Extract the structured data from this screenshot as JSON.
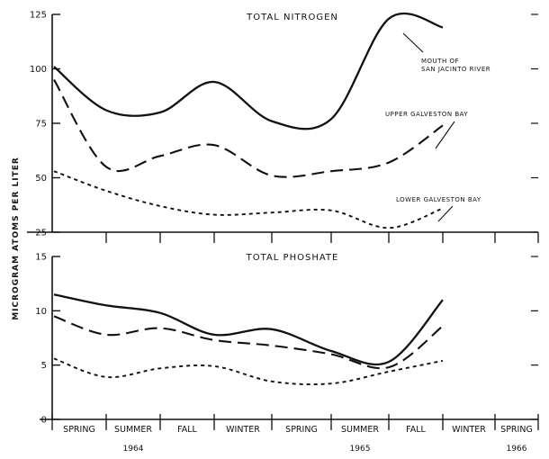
{
  "chart_data": {
    "ylabel": "MICROGRAM ATOMS PER LITER",
    "seasons": [
      "SPRING",
      "SUMMER",
      "FALL",
      "WINTER",
      "SPRING",
      "SUMMER",
      "FALL",
      "WINTER",
      "SPRING"
    ],
    "years": [
      {
        "label": "1964",
        "season_index": 1
      },
      {
        "label": "1965",
        "season_index": 5
      },
      {
        "label": "1966",
        "season_index": 8
      }
    ],
    "panels": [
      {
        "type": "line",
        "title": "TOTAL NITROGEN",
        "ylim": [
          25,
          125
        ],
        "yticks": [
          "25",
          "50",
          "75",
          "100",
          "125"
        ],
        "series": [
          {
            "name": "MOUTH OF SAN JACINTO RIVER",
            "style": "solid",
            "points": [
              [
                0,
                101
              ],
              [
                1,
                81
              ],
              [
                2,
                80
              ],
              [
                3,
                94
              ],
              [
                4,
                76
              ],
              [
                5,
                77
              ],
              [
                6,
                123
              ],
              [
                7,
                119
              ]
            ]
          },
          {
            "name": "UPPER GALVESTON BAY",
            "style": "dashed",
            "points": [
              [
                0,
                95
              ],
              [
                1,
                55
              ],
              [
                2,
                60
              ],
              [
                3,
                65
              ],
              [
                4,
                51
              ],
              [
                5,
                53
              ],
              [
                6,
                57
              ],
              [
                7,
                74
              ]
            ]
          },
          {
            "name": "LOWER GALVESTON BAY",
            "style": "dotted",
            "points": [
              [
                0,
                53
              ],
              [
                1,
                44
              ],
              [
                2,
                37
              ],
              [
                3,
                33
              ],
              [
                4,
                34
              ],
              [
                5,
                35
              ],
              [
                6,
                27
              ],
              [
                7,
                36
              ]
            ]
          }
        ],
        "annotations": [
          {
            "lines": [
              "MOUTH OF",
              "SAN JACINTO RIVER"
            ],
            "series": 0
          },
          {
            "lines": [
              "UPPER GALVESTON BAY"
            ],
            "series": 1
          },
          {
            "lines": [
              "LOWER GALVESTON BAY"
            ],
            "series": 2
          }
        ]
      },
      {
        "type": "line",
        "title": "TOTAL PHOSHATE",
        "ylim": [
          0,
          15
        ],
        "yticks": [
          "0",
          "5",
          "10",
          "15"
        ],
        "series": [
          {
            "name": "MOUTH OF SAN JACINTO RIVER",
            "style": "solid",
            "points": [
              [
                0,
                11.5
              ],
              [
                1,
                10.5
              ],
              [
                2,
                9.8
              ],
              [
                3,
                7.8
              ],
              [
                4,
                8.3
              ],
              [
                5,
                6.3
              ],
              [
                6,
                5.3
              ],
              [
                7,
                11
              ]
            ]
          },
          {
            "name": "UPPER GALVESTON BAY",
            "style": "dashed",
            "points": [
              [
                0,
                9.5
              ],
              [
                1,
                7.8
              ],
              [
                2,
                8.4
              ],
              [
                3,
                7.3
              ],
              [
                4,
                6.8
              ],
              [
                5,
                6.0
              ],
              [
                6,
                4.8
              ],
              [
                7,
                8.6
              ]
            ]
          },
          {
            "name": "LOWER GALVESTON BAY",
            "style": "dotted",
            "points": [
              [
                0,
                5.6
              ],
              [
                1,
                3.9
              ],
              [
                2,
                4.7
              ],
              [
                3,
                4.9
              ],
              [
                4,
                3.5
              ],
              [
                5,
                3.3
              ],
              [
                6,
                4.4
              ],
              [
                7,
                5.4
              ]
            ]
          }
        ]
      }
    ]
  }
}
